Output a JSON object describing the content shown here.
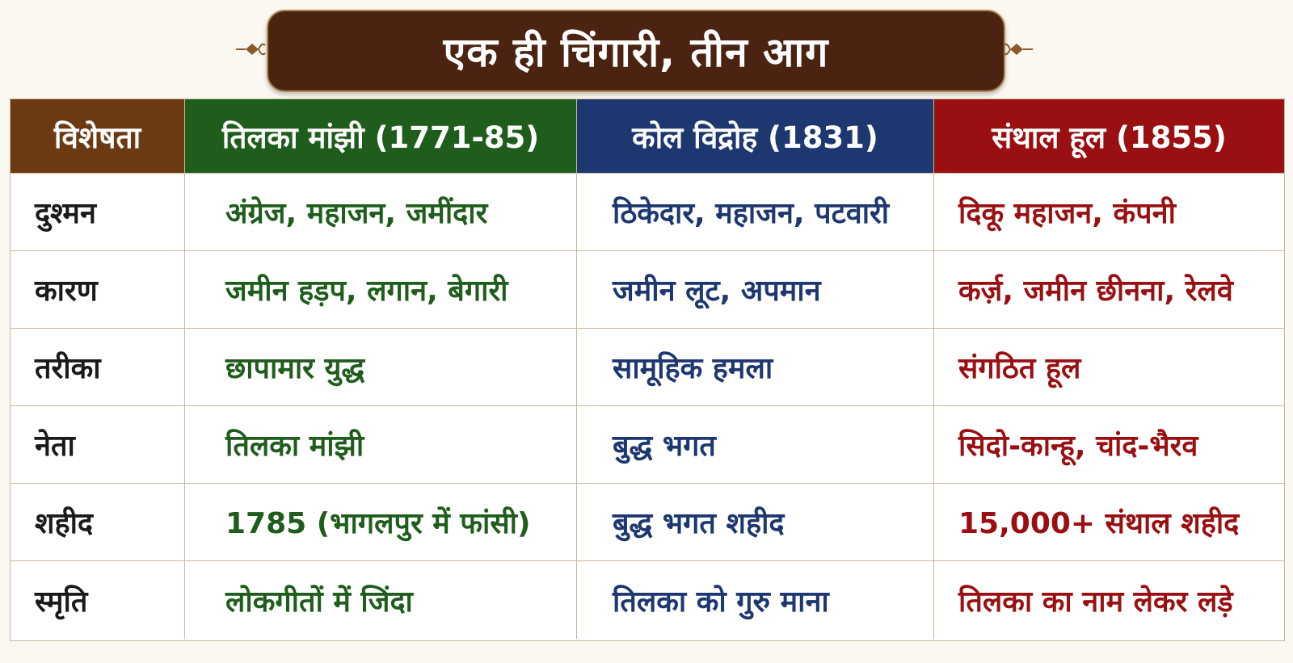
{
  "title": "एक ही चिंगारी, तीन आग",
  "headers": [
    "विशेषता",
    "तिलका मांझी (1771-85)",
    "कोल विद्रोह (1831)",
    "संथाल हूल (1855)"
  ],
  "rows": [
    {
      "label": "दुश्मन",
      "tilka": "अंग्रेज, महाजन, जमींदार",
      "kol": "ठिकेदार, महाजन, पटवारी",
      "santhal": "दिकू महाजन, कंपनी"
    },
    {
      "label": "कारण",
      "tilka": "जमीन हड़प, लगान, बेगारी",
      "kol": "जमीन लूट, अपमान",
      "santhal": "कर्ज़, जमीन छीनना, रेलवे"
    },
    {
      "label": "तरीका",
      "tilka": "छापामार युद्ध",
      "kol": "सामूहिक हमला",
      "santhal": "संगठित हूल"
    },
    {
      "label": "नेता",
      "tilka": "तिलका मांझी",
      "kol": "बुद्ध भगत",
      "santhal": "सिदो-कान्हू, चांद-भैरव"
    },
    {
      "label": "शहीद",
      "tilka": "1785 (भागलपुर में फांसी)",
      "kol": "बुद्ध भगत शहीद",
      "santhal": "15,000+ संथाल शहीद"
    },
    {
      "label": "स्मृति",
      "tilka": "लोकगीतों में जिंदा",
      "kol": "तिलका को गुरु माना",
      "santhal": "तिलका का नाम लेकर लड़े"
    }
  ],
  "colors": {
    "banner": "#4a2410",
    "label_header": "#6b3a13",
    "tilka": "#1f5d1c",
    "kol": "#1d3770",
    "santhal": "#9a1012"
  }
}
